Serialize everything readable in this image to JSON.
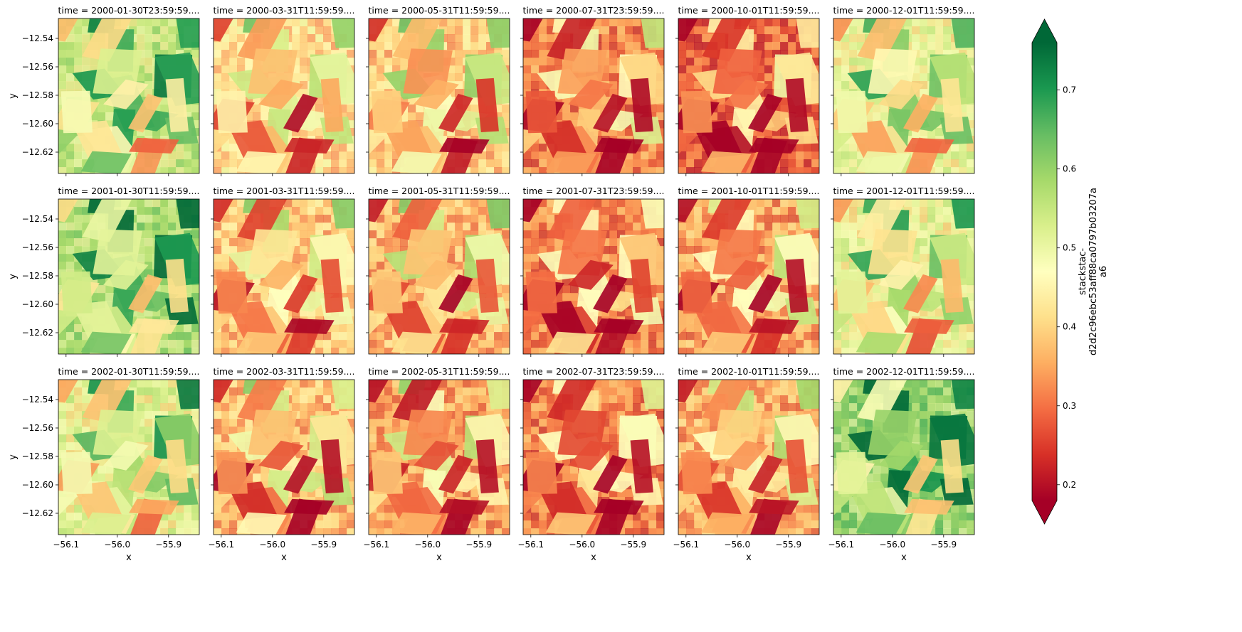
{
  "chart_data": {
    "type": "heatmap",
    "layout": "facet-grid",
    "rows": 3,
    "cols": 6,
    "panel_titles": [
      "time = 2000-01-30T23:59:59....",
      "time = 2000-03-31T11:59:59....",
      "time = 2000-05-31T11:59:59....",
      "time = 2000-07-31T23:59:59....",
      "time = 2000-10-01T11:59:59....",
      "time = 2000-12-01T11:59:59....",
      "time = 2001-01-30T11:59:59....",
      "time = 2001-03-31T11:59:59....",
      "time = 2001-05-31T11:59:59....",
      "time = 2001-07-31T23:59:59....",
      "time = 2001-10-01T11:59:59....",
      "time = 2001-12-01T11:59:59....",
      "time = 2002-01-30T11:59:59....",
      "time = 2002-03-31T11:59:59....",
      "time = 2002-05-31T11:59:59....",
      "time = 2002-07-31T23:59:59....",
      "time = 2002-10-01T11:59:59....",
      "time = 2002-12-01T11:59:59...."
    ],
    "panel_mean_values": [
      0.52,
      0.4,
      0.38,
      0.3,
      0.27,
      0.47,
      0.55,
      0.37,
      0.35,
      0.3,
      0.33,
      0.47,
      0.48,
      0.36,
      0.33,
      0.3,
      0.34,
      0.57
    ],
    "xlabel": "x",
    "ylabel": "y",
    "xlim": [
      -56.115,
      -55.84
    ],
    "ylim": [
      -12.635,
      -12.526
    ],
    "xticks": [
      -56.1,
      -56.0,
      -55.9
    ],
    "xtick_labels": [
      "−56.1",
      "−56.0",
      "−55.9"
    ],
    "yticks": [
      -12.54,
      -12.56,
      -12.58,
      -12.6,
      -12.62
    ],
    "ytick_labels": [
      "−12.54",
      "−12.56",
      "−12.58",
      "−12.60",
      "−12.62"
    ],
    "colorbar": {
      "colormap": "RdYlGn",
      "vmin": 0.18,
      "vmax": 0.76,
      "extend": "both",
      "ticks": [
        0.2,
        0.3,
        0.4,
        0.5,
        0.6,
        0.7
      ],
      "tick_labels": [
        "0.2",
        "0.3",
        "0.4",
        "0.5",
        "0.6",
        "0.7"
      ],
      "label_lines": [
        "stackstac-",
        "d2d2c96ebc53aff88ca0797b03207a",
        "a6"
      ],
      "colors": [
        "#a50026",
        "#d73027",
        "#f46d43",
        "#fdae61",
        "#fee08b",
        "#ffffbf",
        "#d9ef8b",
        "#a6d96a",
        "#66bd63",
        "#1a9850",
        "#006837"
      ]
    }
  }
}
